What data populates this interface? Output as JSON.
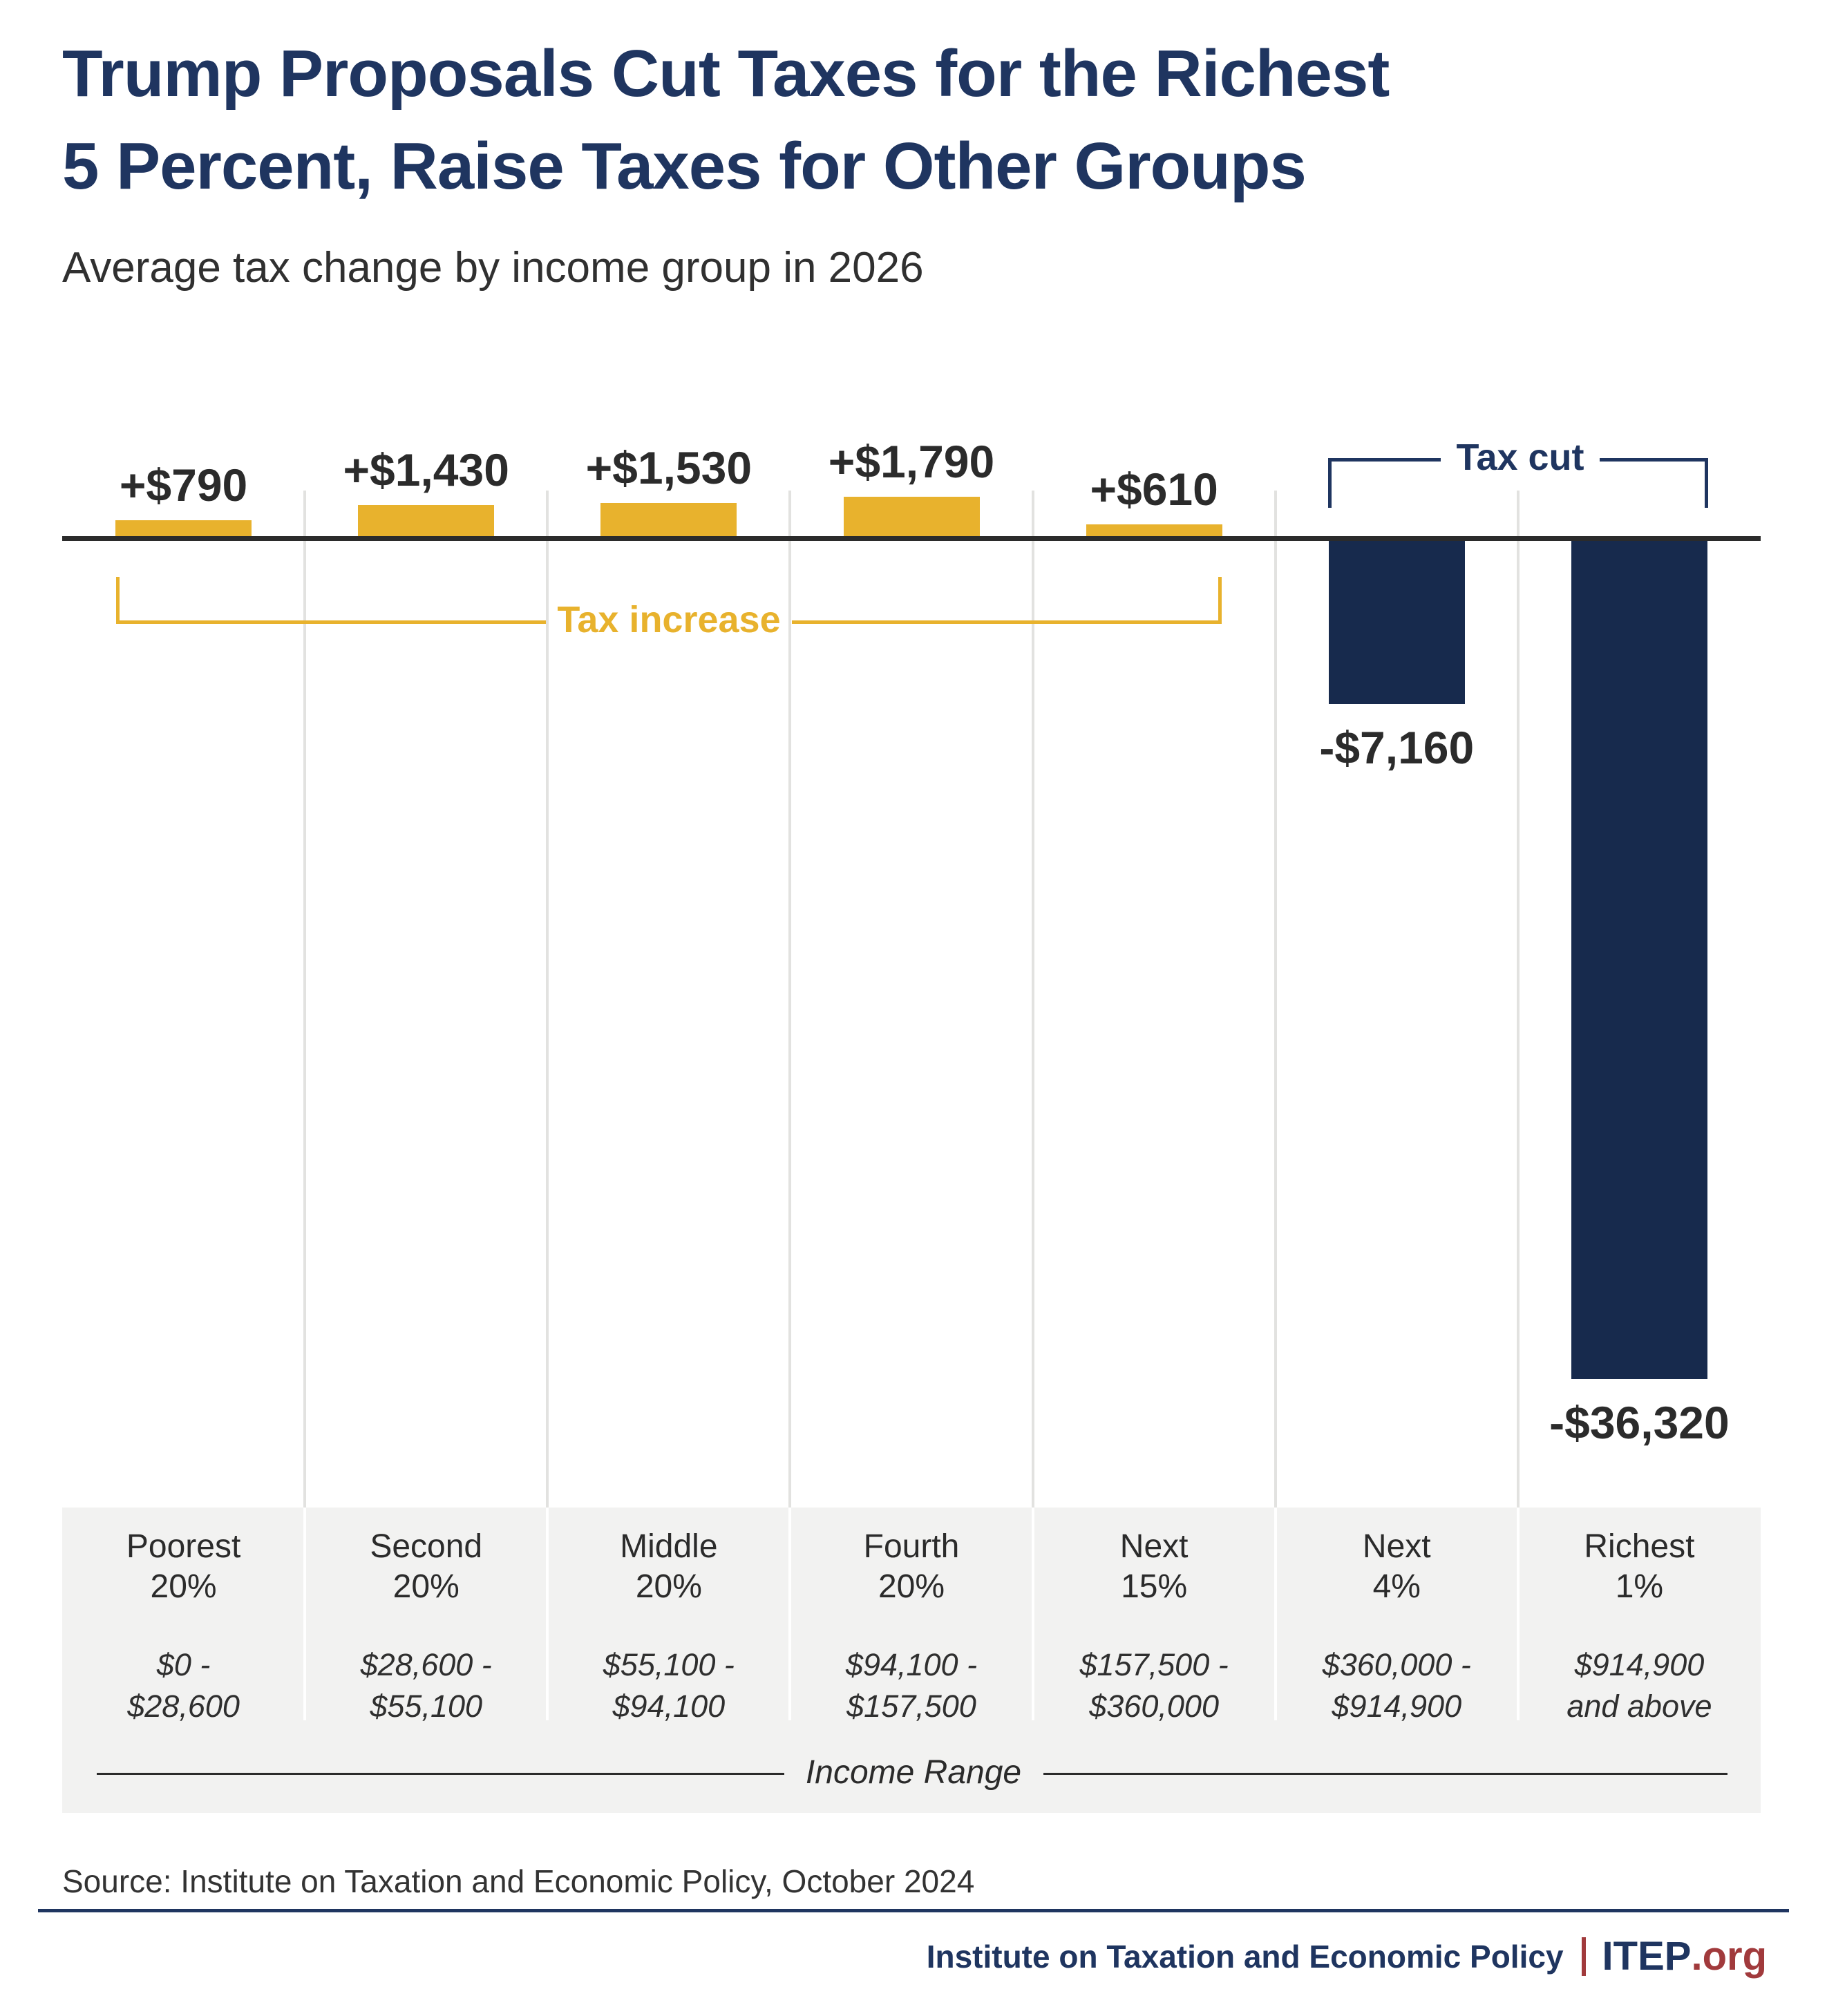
{
  "title": {
    "line1": "Trump Proposals Cut Taxes for the Richest",
    "line2": "5 Percent, Raise Taxes for Other Groups"
  },
  "subtitle": "Average tax change by income group in 2026",
  "chart_data": {
    "type": "bar",
    "title": "Trump Proposals Cut Taxes for the Richest 5 Percent, Raise Taxes for Other Groups",
    "subtitle": "Average tax change by income group in 2026",
    "categories": [
      "Poorest 20%",
      "Second 20%",
      "Middle 20%",
      "Fourth 20%",
      "Next 15%",
      "Next 4%",
      "Richest 1%"
    ],
    "category_lines": [
      [
        "Poorest",
        "20%"
      ],
      [
        "Second",
        "20%"
      ],
      [
        "Middle",
        "20%"
      ],
      [
        "Fourth",
        "20%"
      ],
      [
        "Next",
        "15%"
      ],
      [
        "Next",
        "4%"
      ],
      [
        "Richest",
        "1%"
      ]
    ],
    "income_ranges": [
      [
        "$0 -",
        "$28,600"
      ],
      [
        "$28,600 -",
        "$55,100"
      ],
      [
        "$55,100 -",
        "$94,100"
      ],
      [
        "$94,100 -",
        "$157,500"
      ],
      [
        "$157,500 -",
        "$360,000"
      ],
      [
        "$360,000 -",
        "$914,900"
      ],
      [
        "$914,900",
        "and above"
      ]
    ],
    "values": [
      790,
      1430,
      1530,
      1790,
      610,
      -7160,
      -36320
    ],
    "value_labels": [
      "+$790",
      "+$1,430",
      "+$1,530",
      "+$1,790",
      "+$610",
      "-$7,160",
      "-$36,320"
    ],
    "xlabel": "Income Range",
    "baseline": 0,
    "grid": true,
    "legend_position": "none",
    "annotations": {
      "tax_increase": "Tax increase",
      "tax_cut": "Tax cut"
    },
    "colors": {
      "increase_bar": "#E8B22D",
      "cut_bar": "#172A4D",
      "title_navy": "#1F3560",
      "maroon": "#A13A3C",
      "text_dark": "#2B2B2B",
      "panel_gray": "#F2F2F1"
    }
  },
  "footer": {
    "source": "Source: Institute on Taxation and Economic Policy, October 2024",
    "org_name": "Institute on Taxation and Economic Policy",
    "logo_text": "ITEP",
    "logo_suffix": ".org"
  }
}
